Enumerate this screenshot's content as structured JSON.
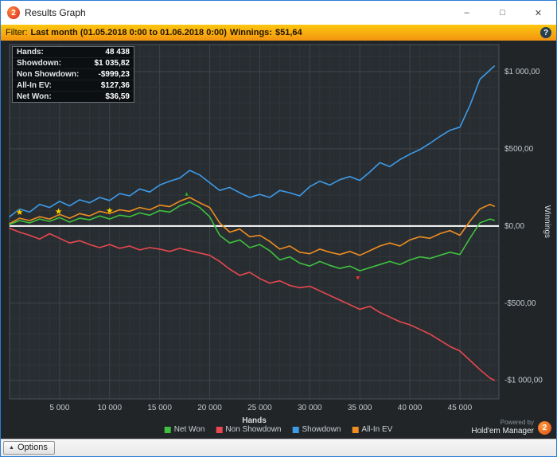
{
  "window": {
    "title": "Results Graph",
    "icon": "2",
    "controls": {
      "minimize": "–",
      "maximize": "□",
      "close": "✕"
    }
  },
  "filter_bar": {
    "label": "Filter:",
    "value": "Last month (01.05.2018 0:00 to 01.06.2018 0:00)",
    "winnings_label": "Winnings:",
    "winnings_value": "$51,64",
    "help": "?"
  },
  "stats_box": {
    "rows": [
      {
        "label": "Hands:",
        "value": "48 438"
      },
      {
        "label": "Showdown:",
        "value": "$1 035,82"
      },
      {
        "label": "Non Showdown:",
        "value": "-$999,23"
      },
      {
        "label": "All-In EV:",
        "value": "$127,36"
      },
      {
        "label": "Net Won:",
        "value": "$36,59"
      }
    ]
  },
  "chart_data": {
    "type": "line",
    "title": "",
    "xlabel": "Hands",
    "ylabel": "Winnings",
    "xlim": [
      0,
      48900
    ],
    "ylim": [
      -1120,
      1175
    ],
    "grid": {
      "x_minor": 1000,
      "x_major": 5000,
      "y_minor": 100,
      "y_major": 500
    },
    "x_ticks": [
      {
        "v": 5000,
        "label": "5 000"
      },
      {
        "v": 10000,
        "label": "10 000"
      },
      {
        "v": 15000,
        "label": "15 000"
      },
      {
        "v": 20000,
        "label": "20 000"
      },
      {
        "v": 25000,
        "label": "25 000"
      },
      {
        "v": 30000,
        "label": "30 000"
      },
      {
        "v": 35000,
        "label": "35 000"
      },
      {
        "v": 40000,
        "label": "40 000"
      },
      {
        "v": 45000,
        "label": "45 000"
      }
    ],
    "y_ticks": [
      {
        "v": 1000,
        "label": "$1 000,00"
      },
      {
        "v": 500,
        "label": "$500,00"
      },
      {
        "v": 0,
        "label": "$0,00"
      },
      {
        "v": -500,
        "label": "-$500,00"
      },
      {
        "v": -1000,
        "label": "-$1 000,00"
      }
    ],
    "zero_line": 0,
    "legend_position": "bottom",
    "x": [
      0,
      1000,
      2000,
      3000,
      4000,
      5000,
      6000,
      7000,
      8000,
      9000,
      10000,
      11000,
      12000,
      13000,
      14000,
      15000,
      16000,
      17000,
      18000,
      19000,
      20000,
      21000,
      22000,
      23000,
      24000,
      25000,
      26000,
      27000,
      28000,
      29000,
      30000,
      31000,
      32000,
      33000,
      34000,
      35000,
      36000,
      37000,
      38000,
      39000,
      40000,
      41000,
      42000,
      43000,
      44000,
      45000,
      46000,
      47000,
      48000,
      48438
    ],
    "series": [
      {
        "name": "Non Showdown",
        "color": "#e8484e",
        "values": [
          -15,
          -40,
          -60,
          -85,
          -50,
          -80,
          -110,
          -95,
          -120,
          -140,
          -120,
          -145,
          -130,
          -155,
          -140,
          -150,
          -165,
          -145,
          -160,
          -175,
          -190,
          -230,
          -280,
          -320,
          -300,
          -340,
          -370,
          -355,
          -385,
          -400,
          -390,
          -420,
          -450,
          -480,
          -510,
          -540,
          -520,
          -560,
          -590,
          -620,
          -640,
          -670,
          -700,
          -740,
          -780,
          -810,
          -870,
          -930,
          -985,
          -999.23
        ]
      },
      {
        "name": "Showdown",
        "color": "#3d9be8",
        "values": [
          60,
          110,
          90,
          140,
          120,
          160,
          130,
          170,
          150,
          185,
          165,
          210,
          195,
          240,
          220,
          265,
          290,
          310,
          360,
          330,
          280,
          230,
          250,
          215,
          185,
          205,
          185,
          230,
          215,
          195,
          255,
          290,
          265,
          300,
          320,
          295,
          350,
          410,
          385,
          430,
          465,
          495,
          535,
          580,
          620,
          640,
          780,
          950,
          1010,
          1035.82
        ]
      },
      {
        "name": "All-In EV",
        "color": "#ef8e1f",
        "values": [
          15,
          50,
          35,
          60,
          45,
          75,
          50,
          80,
          65,
          95,
          80,
          105,
          95,
          120,
          105,
          135,
          125,
          160,
          185,
          150,
          120,
          20,
          -40,
          -20,
          -70,
          -60,
          -100,
          -150,
          -130,
          -170,
          -180,
          -150,
          -170,
          -185,
          -165,
          -190,
          -160,
          -130,
          -110,
          -130,
          -90,
          -70,
          -80,
          -50,
          -30,
          -60,
          30,
          110,
          140,
          127.36
        ]
      },
      {
        "name": "Net Won",
        "color": "#3ec13e",
        "values": [
          10,
          35,
          20,
          45,
          30,
          55,
          25,
          50,
          40,
          65,
          45,
          70,
          60,
          85,
          70,
          100,
          90,
          130,
          155,
          120,
          60,
          -60,
          -110,
          -90,
          -140,
          -120,
          -160,
          -220,
          -200,
          -240,
          -260,
          -230,
          -255,
          -275,
          -260,
          -290,
          -270,
          -250,
          -230,
          -250,
          -220,
          -200,
          -210,
          -190,
          -170,
          -185,
          -80,
          20,
          45,
          36.59
        ]
      }
    ],
    "markers": [
      {
        "shape": "star",
        "color": "#ffd400",
        "x": 1000,
        "y": 90
      },
      {
        "shape": "star",
        "color": "#ffd400",
        "x": 4900,
        "y": 95
      },
      {
        "shape": "star",
        "color": "#ffd400",
        "x": 10000,
        "y": 100
      },
      {
        "shape": "triangle-up",
        "color": "#2fae2f",
        "x": 17700,
        "y": 215
      },
      {
        "shape": "triangle-down",
        "color": "#e03c3c",
        "x": 34800,
        "y": -330
      }
    ]
  },
  "legend": {
    "items": [
      {
        "label": "Net Won",
        "color": "#3ec13e"
      },
      {
        "label": "Non Showdown",
        "color": "#e8484e"
      },
      {
        "label": "Showdown",
        "color": "#3d9be8"
      },
      {
        "label": "All-In EV",
        "color": "#ef8e1f"
      }
    ]
  },
  "footer": {
    "powered_by": "Powered by",
    "brand": "Hold'em Manager",
    "logo": "2"
  },
  "status_bar": {
    "options_label": "Options"
  }
}
